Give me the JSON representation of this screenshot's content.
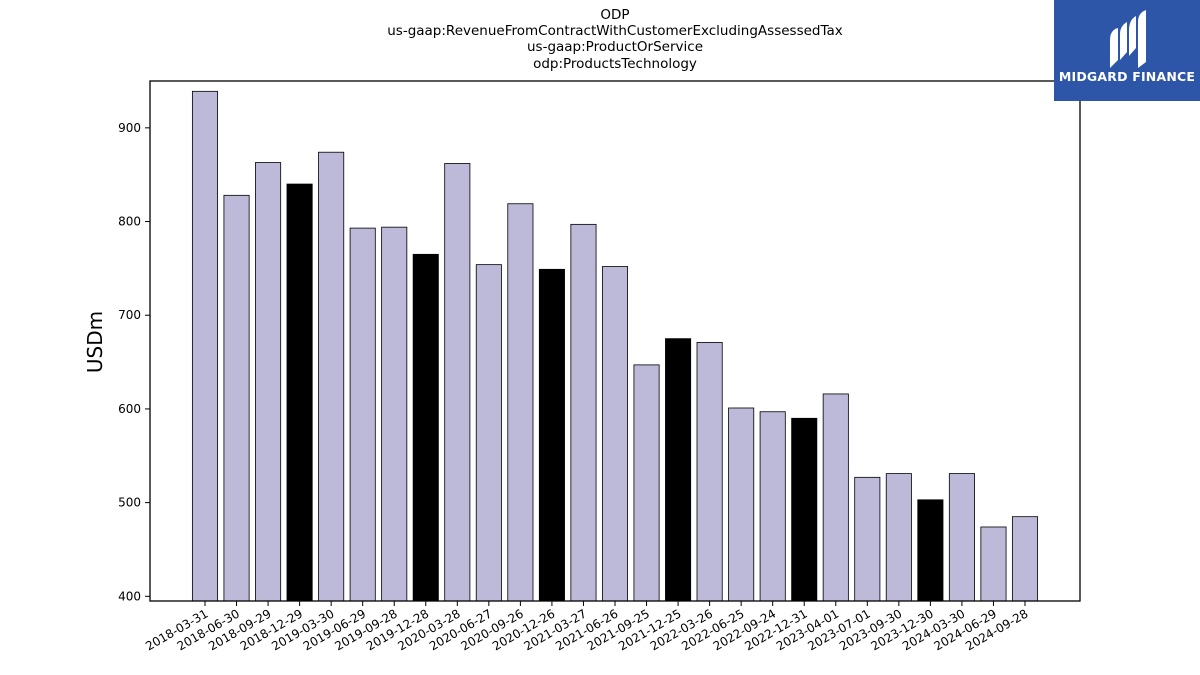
{
  "chart_data": {
    "type": "bar",
    "title_lines": [
      "ODP",
      "us-gaap:RevenueFromContractWithCustomerExcludingAssessedTax",
      "us-gaap:ProductOrService",
      "odp:ProductsTechnology"
    ],
    "ylabel": "USDm",
    "ylim": [
      395,
      950
    ],
    "yticks": [
      400,
      500,
      600,
      700,
      800,
      900
    ],
    "categories": [
      "2018-03-31",
      "2018-06-30",
      "2018-09-29",
      "2018-12-29",
      "2019-03-30",
      "2019-06-29",
      "2019-09-28",
      "2019-12-28",
      "2020-03-28",
      "2020-06-27",
      "2020-09-26",
      "2020-12-26",
      "2021-03-27",
      "2021-06-26",
      "2021-09-25",
      "2021-12-25",
      "2022-03-26",
      "2022-06-25",
      "2022-09-24",
      "2022-12-31",
      "2023-04-01",
      "2023-07-01",
      "2023-09-30",
      "2023-12-30",
      "2024-03-30",
      "2024-06-29",
      "2024-09-28"
    ],
    "values": [
      939,
      828,
      863,
      840,
      874,
      793,
      794,
      765,
      862,
      754,
      819,
      749,
      797,
      752,
      647,
      675,
      671,
      601,
      597,
      590,
      616,
      527,
      531,
      503,
      531,
      474,
      485
    ],
    "highlighted": [
      false,
      false,
      false,
      true,
      false,
      false,
      false,
      true,
      false,
      false,
      false,
      true,
      false,
      false,
      false,
      true,
      false,
      false,
      false,
      true,
      false,
      false,
      false,
      true,
      false,
      false,
      false
    ],
    "colors": {
      "bar": "#bcb9d9",
      "highlight": "#000000",
      "edge": "#000000"
    },
    "grid": false,
    "legend": "none"
  },
  "logo": {
    "text": "MIDGARD FINANCE",
    "background": "#2e56a8"
  }
}
